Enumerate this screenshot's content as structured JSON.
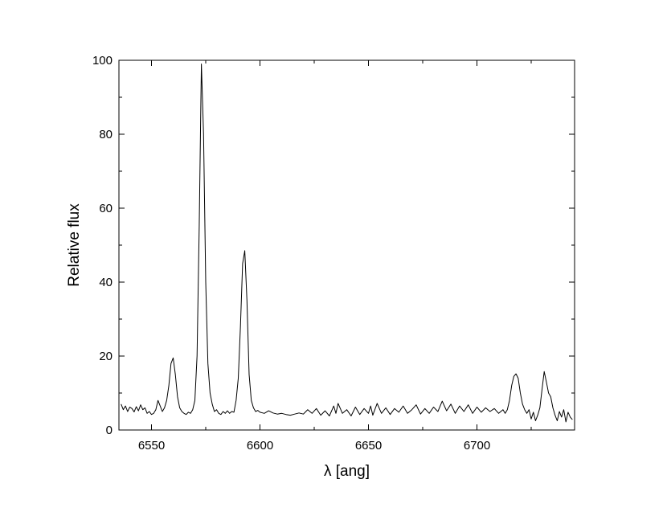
{
  "chart_data": {
    "type": "line",
    "title": "",
    "xlabel": "λ [ang]",
    "ylabel": "Relative flux",
    "xlim": [
      6535,
      6745
    ],
    "ylim": [
      0,
      100
    ],
    "x_ticks": [
      6550,
      6600,
      6650,
      6700
    ],
    "y_ticks": [
      0,
      20,
      40,
      60,
      80,
      100
    ],
    "grid": false,
    "series": [
      {
        "color": "#000000",
        "points": [
          [
            6536,
            7.0
          ],
          [
            6537,
            5.5
          ],
          [
            6538,
            6.5
          ],
          [
            6539,
            5.0
          ],
          [
            6540,
            6.2
          ],
          [
            6541,
            5.8
          ],
          [
            6542,
            4.9
          ],
          [
            6543,
            6.3
          ],
          [
            6544,
            5.2
          ],
          [
            6545,
            6.8
          ],
          [
            6546,
            5.5
          ],
          [
            6547,
            6.0
          ],
          [
            6548,
            4.5
          ],
          [
            6549,
            5.0
          ],
          [
            6550,
            4.2
          ],
          [
            6551,
            4.5
          ],
          [
            6552,
            5.5
          ],
          [
            6553,
            8.0
          ],
          [
            6554,
            6.5
          ],
          [
            6555,
            5.0
          ],
          [
            6556,
            6.0
          ],
          [
            6557,
            8.0
          ],
          [
            6558,
            12.0
          ],
          [
            6559,
            18.0
          ],
          [
            6560,
            19.5
          ],
          [
            6561,
            15.0
          ],
          [
            6562,
            9.0
          ],
          [
            6563,
            6.0
          ],
          [
            6564,
            5.0
          ],
          [
            6565,
            4.5
          ],
          [
            6566,
            4.2
          ],
          [
            6567,
            4.8
          ],
          [
            6568,
            4.5
          ],
          [
            6569,
            5.5
          ],
          [
            6570,
            8.0
          ],
          [
            6571,
            20.0
          ],
          [
            6572,
            55.0
          ],
          [
            6573,
            99.0
          ],
          [
            6574,
            80.0
          ],
          [
            6575,
            40.0
          ],
          [
            6576,
            18.0
          ],
          [
            6577,
            10.0
          ],
          [
            6578,
            7.0
          ],
          [
            6579,
            5.0
          ],
          [
            6580,
            5.5
          ],
          [
            6581,
            4.5
          ],
          [
            6582,
            4.2
          ],
          [
            6583,
            5.0
          ],
          [
            6584,
            4.5
          ],
          [
            6585,
            5.2
          ],
          [
            6586,
            4.5
          ],
          [
            6587,
            5.0
          ],
          [
            6588,
            4.8
          ],
          [
            6589,
            8.0
          ],
          [
            6590,
            14.0
          ],
          [
            6591,
            28.0
          ],
          [
            6592,
            45.0
          ],
          [
            6593,
            48.5
          ],
          [
            6594,
            35.0
          ],
          [
            6595,
            15.0
          ],
          [
            6596,
            8.0
          ],
          [
            6597,
            6.0
          ],
          [
            6598,
            5.0
          ],
          [
            6599,
            5.3
          ],
          [
            6600,
            4.8
          ],
          [
            6602,
            4.5
          ],
          [
            6604,
            5.2
          ],
          [
            6606,
            4.6
          ],
          [
            6608,
            4.3
          ],
          [
            6610,
            4.5
          ],
          [
            6612,
            4.2
          ],
          [
            6614,
            4.0
          ],
          [
            6616,
            4.3
          ],
          [
            6618,
            4.6
          ],
          [
            6620,
            4.3
          ],
          [
            6622,
            5.5
          ],
          [
            6624,
            4.5
          ],
          [
            6626,
            5.8
          ],
          [
            6628,
            4.0
          ],
          [
            6630,
            5.2
          ],
          [
            6632,
            3.8
          ],
          [
            6634,
            6.5
          ],
          [
            6635,
            4.5
          ],
          [
            6636,
            7.2
          ],
          [
            6638,
            4.5
          ],
          [
            6640,
            5.5
          ],
          [
            6642,
            3.8
          ],
          [
            6644,
            6.2
          ],
          [
            6646,
            4.2
          ],
          [
            6648,
            5.8
          ],
          [
            6650,
            4.5
          ],
          [
            6651,
            6.5
          ],
          [
            6652,
            4.0
          ],
          [
            6654,
            7.2
          ],
          [
            6656,
            4.5
          ],
          [
            6658,
            6.0
          ],
          [
            6660,
            4.2
          ],
          [
            6662,
            5.8
          ],
          [
            6664,
            4.8
          ],
          [
            6666,
            6.5
          ],
          [
            6668,
            4.5
          ],
          [
            6670,
            5.5
          ],
          [
            6672,
            6.8
          ],
          [
            6674,
            4.3
          ],
          [
            6676,
            5.8
          ],
          [
            6678,
            4.5
          ],
          [
            6680,
            6.2
          ],
          [
            6682,
            5.0
          ],
          [
            6684,
            7.8
          ],
          [
            6686,
            5.2
          ],
          [
            6688,
            7.0
          ],
          [
            6690,
            4.5
          ],
          [
            6692,
            6.5
          ],
          [
            6694,
            5.0
          ],
          [
            6696,
            6.8
          ],
          [
            6698,
            4.5
          ],
          [
            6700,
            6.2
          ],
          [
            6702,
            4.8
          ],
          [
            6704,
            6.0
          ],
          [
            6706,
            5.0
          ],
          [
            6708,
            5.8
          ],
          [
            6710,
            4.5
          ],
          [
            6712,
            5.5
          ],
          [
            6713,
            4.5
          ],
          [
            6714,
            5.5
          ],
          [
            6715,
            8.0
          ],
          [
            6716,
            12.0
          ],
          [
            6717,
            14.5
          ],
          [
            6718,
            15.2
          ],
          [
            6719,
            14.0
          ],
          [
            6720,
            10.0
          ],
          [
            6721,
            7.0
          ],
          [
            6722,
            5.5
          ],
          [
            6723,
            4.5
          ],
          [
            6724,
            5.5
          ],
          [
            6725,
            3.0
          ],
          [
            6726,
            4.8
          ],
          [
            6727,
            2.5
          ],
          [
            6728,
            4.0
          ],
          [
            6729,
            6.0
          ],
          [
            6730,
            11.0
          ],
          [
            6731,
            15.8
          ],
          [
            6732,
            13.0
          ],
          [
            6733,
            10.0
          ],
          [
            6734,
            9.0
          ],
          [
            6735,
            6.0
          ],
          [
            6736,
            4.0
          ],
          [
            6737,
            2.5
          ],
          [
            6738,
            5.0
          ],
          [
            6739,
            3.5
          ],
          [
            6740,
            5.5
          ],
          [
            6741,
            2.2
          ],
          [
            6742,
            4.8
          ],
          [
            6743,
            3.5
          ],
          [
            6744,
            2.8
          ]
        ]
      }
    ]
  }
}
